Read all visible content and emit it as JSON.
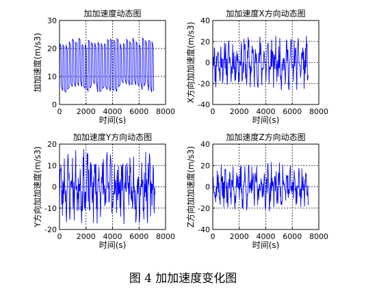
{
  "caption": "图 4  加加速度变化图",
  "style": {
    "line_color": "#0000ff",
    "axis_color": "#000000",
    "grid_color": "#000000"
  },
  "chart_data": [
    {
      "type": "line",
      "title": "加加速度动态图",
      "xlabel": "时间(s)",
      "ylabel": "加加速度(m/s3)",
      "xlim": [
        0,
        8000
      ],
      "ylim": [
        0,
        30
      ],
      "xticks": [
        0,
        2000,
        4000,
        6000,
        8000
      ],
      "yticks": [
        0,
        10,
        20,
        30
      ],
      "grid": true,
      "series": [
        {
          "profile": "square",
          "x_end": 7200,
          "cycles": 30,
          "low": 8,
          "high": 22,
          "amp_low": 6,
          "amp_high": 3,
          "seed": 7
        }
      ]
    },
    {
      "type": "line",
      "title": "加加速度X方向动态图",
      "xlabel": "时间(s)",
      "ylabel": "X方向加加速度(m/s3)",
      "xlim": [
        0,
        8000
      ],
      "ylim": [
        -40,
        40
      ],
      "xticks": [
        0,
        2000,
        4000,
        6000,
        8000
      ],
      "yticks": [
        -40,
        -20,
        0,
        20,
        40
      ],
      "grid": true,
      "series": [
        {
          "profile": "noisy",
          "x_end": 7200,
          "points": 260,
          "center": 0,
          "amp": 18,
          "seed": 11
        }
      ]
    },
    {
      "type": "line",
      "title": "加加速度Y方向动态图",
      "xlabel": "时间(s)",
      "ylabel": "Y方向加加速度(m/s3)",
      "xlim": [
        0,
        8000
      ],
      "ylim": [
        -20,
        20
      ],
      "xticks": [
        0,
        2000,
        4000,
        6000,
        8000
      ],
      "yticks": [
        -20,
        -10,
        0,
        10,
        20
      ],
      "grid": true,
      "series": [
        {
          "profile": "noisy",
          "x_end": 7200,
          "points": 260,
          "center": 0,
          "amp": 12,
          "seed": 23
        }
      ]
    },
    {
      "type": "line",
      "title": "加加速度Z方向动态图",
      "xlabel": "时间(s)",
      "ylabel": "Z方向加加速度(m/s3)",
      "xlim": [
        0,
        8000
      ],
      "ylim": [
        -40,
        40
      ],
      "xticks": [
        0,
        2000,
        4000,
        6000,
        8000
      ],
      "yticks": [
        -40,
        -20,
        0,
        20,
        40
      ],
      "grid": true,
      "series": [
        {
          "profile": "noisy",
          "x_end": 7200,
          "points": 260,
          "center": 0,
          "amp": 16,
          "seed": 37
        }
      ]
    }
  ]
}
